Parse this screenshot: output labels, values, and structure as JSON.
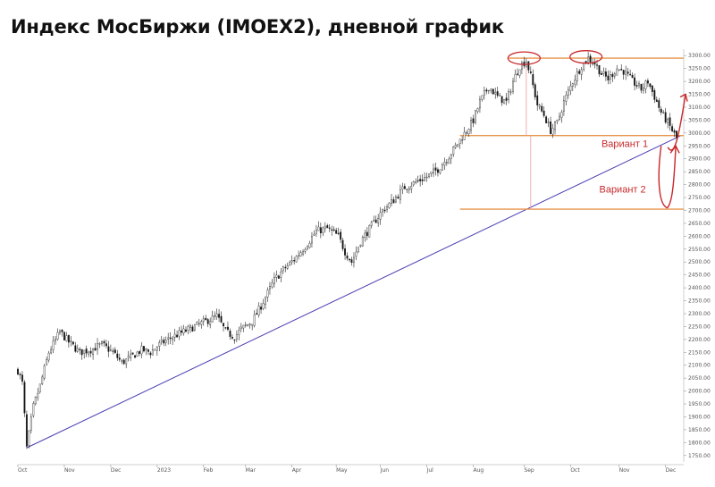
{
  "title": "Индекс МосБиржи (IMOEX2), дневной график",
  "chart_data": {
    "type": "candlestick",
    "title": "Индекс МосБиржи (IMOEX2), дневной график",
    "xlabel": "",
    "ylabel": "",
    "ylim": [
      1725,
      3325
    ],
    "y_ticks": [
      1750,
      1800,
      1850,
      1900,
      1950,
      2000,
      2050,
      2100,
      2150,
      2200,
      2250,
      2300,
      2350,
      2400,
      2450,
      2500,
      2550,
      2600,
      2650,
      2700,
      2750,
      2800,
      2850,
      2900,
      2950,
      3000,
      3050,
      3100,
      3150,
      3200,
      3250,
      3300
    ],
    "y_tick_labels": [
      "1750.00",
      "1800.00",
      "1850.00",
      "1900.00",
      "1950.00",
      "2000.00",
      "2050.00",
      "2100.00",
      "2150.00",
      "2200.00",
      "2250.00",
      "2300.00",
      "2350.00",
      "2400.00",
      "2450.00",
      "2500.00",
      "2550.00",
      "2600.00",
      "2650.00",
      "2700.00",
      "2750.00",
      "2800.00",
      "2850.00",
      "2900.00",
      "2950.00",
      "3000.00",
      "3050.00",
      "3100.00",
      "3150.00",
      "3200.00",
      "3250.00",
      "3300.00"
    ],
    "x_ticks": [
      {
        "label": "Oct",
        "bar": 0
      },
      {
        "label": "Nov",
        "bar": 21
      },
      {
        "label": "Dec",
        "bar": 42
      },
      {
        "label": "2023",
        "bar": 63
      },
      {
        "label": "Feb",
        "bar": 84
      },
      {
        "label": "Mar",
        "bar": 103
      },
      {
        "label": "Apr",
        "bar": 124
      },
      {
        "label": "May",
        "bar": 144
      },
      {
        "label": "Jun",
        "bar": 164
      },
      {
        "label": "Jul",
        "bar": 185
      },
      {
        "label": "Aug",
        "bar": 206
      },
      {
        "label": "Sep",
        "bar": 229
      },
      {
        "label": "Oct",
        "bar": 250
      },
      {
        "label": "Nov",
        "bar": 272
      },
      {
        "label": "Dec",
        "bar": 293
      }
    ],
    "price_path": [
      [
        0,
        2080
      ],
      [
        2,
        2030
      ],
      [
        4,
        1780
      ],
      [
        7,
        1940
      ],
      [
        10,
        2020
      ],
      [
        14,
        2150
      ],
      [
        19,
        2230
      ],
      [
        23,
        2190
      ],
      [
        28,
        2150
      ],
      [
        33,
        2160
      ],
      [
        38,
        2180
      ],
      [
        43,
        2150
      ],
      [
        47,
        2110
      ],
      [
        51,
        2130
      ],
      [
        56,
        2160
      ],
      [
        60,
        2150
      ],
      [
        64,
        2180
      ],
      [
        70,
        2210
      ],
      [
        75,
        2230
      ],
      [
        80,
        2250
      ],
      [
        85,
        2270
      ],
      [
        90,
        2290
      ],
      [
        94,
        2230
      ],
      [
        98,
        2210
      ],
      [
        101,
        2240
      ],
      [
        106,
        2270
      ],
      [
        110,
        2330
      ],
      [
        113,
        2380
      ],
      [
        116,
        2430
      ],
      [
        120,
        2470
      ],
      [
        125,
        2510
      ],
      [
        130,
        2560
      ],
      [
        135,
        2620
      ],
      [
        140,
        2630
      ],
      [
        145,
        2600
      ],
      [
        148,
        2540
      ],
      [
        151,
        2500
      ],
      [
        155,
        2580
      ],
      [
        160,
        2640
      ],
      [
        165,
        2700
      ],
      [
        170,
        2740
      ],
      [
        175,
        2790
      ],
      [
        180,
        2810
      ],
      [
        185,
        2830
      ],
      [
        190,
        2860
      ],
      [
        195,
        2910
      ],
      [
        199,
        2960
      ],
      [
        203,
        3010
      ],
      [
        206,
        3050
      ],
      [
        209,
        3120
      ],
      [
        213,
        3180
      ],
      [
        217,
        3140
      ],
      [
        221,
        3120
      ],
      [
        224,
        3200
      ],
      [
        227,
        3260
      ],
      [
        230,
        3280
      ],
      [
        232,
        3220
      ],
      [
        235,
        3110
      ],
      [
        238,
        3070
      ],
      [
        241,
        3010
      ],
      [
        244,
        3040
      ],
      [
        247,
        3120
      ],
      [
        251,
        3200
      ],
      [
        255,
        3260
      ],
      [
        258,
        3290
      ],
      [
        261,
        3270
      ],
      [
        264,
        3230
      ],
      [
        267,
        3210
      ],
      [
        271,
        3250
      ],
      [
        274,
        3240
      ],
      [
        278,
        3200
      ],
      [
        282,
        3170
      ],
      [
        285,
        3200
      ],
      [
        288,
        3140
      ],
      [
        291,
        3080
      ],
      [
        294,
        3040
      ],
      [
        296,
        3010
      ],
      [
        298,
        2980
      ]
    ],
    "bars_total": 300,
    "lines": [
      {
        "kind": "trendline",
        "from": [
          4,
          1780
        ],
        "to": [
          300,
          2990
        ],
        "color": "#4b3fb3"
      },
      {
        "kind": "horizontal",
        "value": 3290,
        "from_bar": 222,
        "to_bar": 300,
        "color": "#e8944a"
      },
      {
        "kind": "horizontal",
        "value": 2990,
        "from_bar": 200,
        "to_bar": 300,
        "color": "#e8944a"
      },
      {
        "kind": "horizontal",
        "value": 2705,
        "from_bar": 200,
        "to_bar": 300,
        "color": "#e8944a"
      },
      {
        "kind": "vertical",
        "bar": 230,
        "from": 2990,
        "to": 3280,
        "color": "#e99c9c"
      },
      {
        "kind": "vertical",
        "bar": 232,
        "from": 2705,
        "to": 2990,
        "color": "#e99c9c"
      }
    ],
    "markers": [
      {
        "kind": "ellipse",
        "bar": 229,
        "value": 3290,
        "color": "#c8282a"
      },
      {
        "kind": "ellipse",
        "bar": 257,
        "value": 3295,
        "color": "#c8282a"
      }
    ],
    "annotations": [
      {
        "text": "Вариант 1",
        "bar": 264,
        "value": 2945,
        "color": "#c8282a"
      },
      {
        "text": "Вариант 2",
        "bar": 263,
        "value": 2770,
        "color": "#c8282a"
      }
    ],
    "grid": false,
    "colors": {
      "up": "#ffffff",
      "down": "#111111",
      "wick": "#222222",
      "annotation": "#c8282a"
    }
  }
}
